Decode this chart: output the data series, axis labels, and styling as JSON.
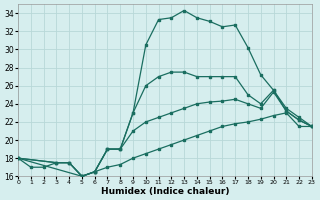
{
  "bg_color": "#d6eeee",
  "grid_color": "#b8d8d8",
  "line_color": "#1a6e60",
  "xlabel": "Humidex (Indice chaleur)",
  "xlim": [
    0,
    23
  ],
  "ylim": [
    16,
    35
  ],
  "xtick_vals": [
    0,
    1,
    2,
    3,
    4,
    5,
    6,
    7,
    8,
    9,
    10,
    11,
    12,
    13,
    14,
    15,
    16,
    17,
    18,
    19,
    20,
    21,
    22,
    23
  ],
  "ytick_vals": [
    16,
    18,
    20,
    22,
    24,
    26,
    28,
    30,
    32,
    34
  ],
  "curve1_x": [
    0,
    1,
    2,
    3,
    4,
    5,
    6,
    7,
    8,
    9,
    10,
    11,
    12,
    13,
    14,
    15,
    16,
    17,
    18,
    19,
    20,
    21,
    22,
    23
  ],
  "curve1_y": [
    18,
    17,
    17,
    17.5,
    17.5,
    16,
    16.5,
    19,
    19,
    23,
    30.5,
    33.3,
    33.5,
    34.3,
    33.5,
    33.1,
    32.5,
    32.7,
    30.2,
    27.2,
    25.5,
    23.2,
    22.2,
    21.5
  ],
  "curve2_x": [
    0,
    3,
    4,
    5,
    6,
    7,
    8,
    9,
    10,
    11,
    12,
    13,
    14,
    15,
    16,
    17,
    18,
    19,
    20,
    21,
    22,
    23
  ],
  "curve2_y": [
    18,
    17.5,
    17.5,
    16,
    16.5,
    19,
    19,
    23,
    26,
    27,
    27.5,
    27.5,
    27,
    27,
    27,
    27,
    25,
    24,
    25.5,
    23.5,
    22.5,
    21.5
  ],
  "curve3_x": [
    0,
    3,
    4,
    5,
    6,
    7,
    8,
    9,
    10,
    11,
    12,
    13,
    14,
    15,
    16,
    17,
    18,
    19,
    20,
    21,
    22,
    23
  ],
  "curve3_y": [
    18,
    17.5,
    17.5,
    16,
    16.5,
    19,
    19,
    21,
    22,
    22.5,
    23,
    23.5,
    24,
    24.2,
    24.3,
    24.5,
    24.0,
    23.5,
    25.3,
    23.2,
    22.2,
    21.5
  ],
  "curve4_x": [
    0,
    5,
    6,
    7,
    8,
    9,
    10,
    11,
    12,
    13,
    14,
    15,
    16,
    17,
    18,
    19,
    20,
    21,
    22,
    23
  ],
  "curve4_y": [
    18,
    16,
    16.5,
    17,
    17.3,
    18,
    18.5,
    19,
    19.5,
    20,
    20.5,
    21,
    21.5,
    21.8,
    22,
    22.3,
    22.7,
    23,
    21.5,
    21.5
  ]
}
